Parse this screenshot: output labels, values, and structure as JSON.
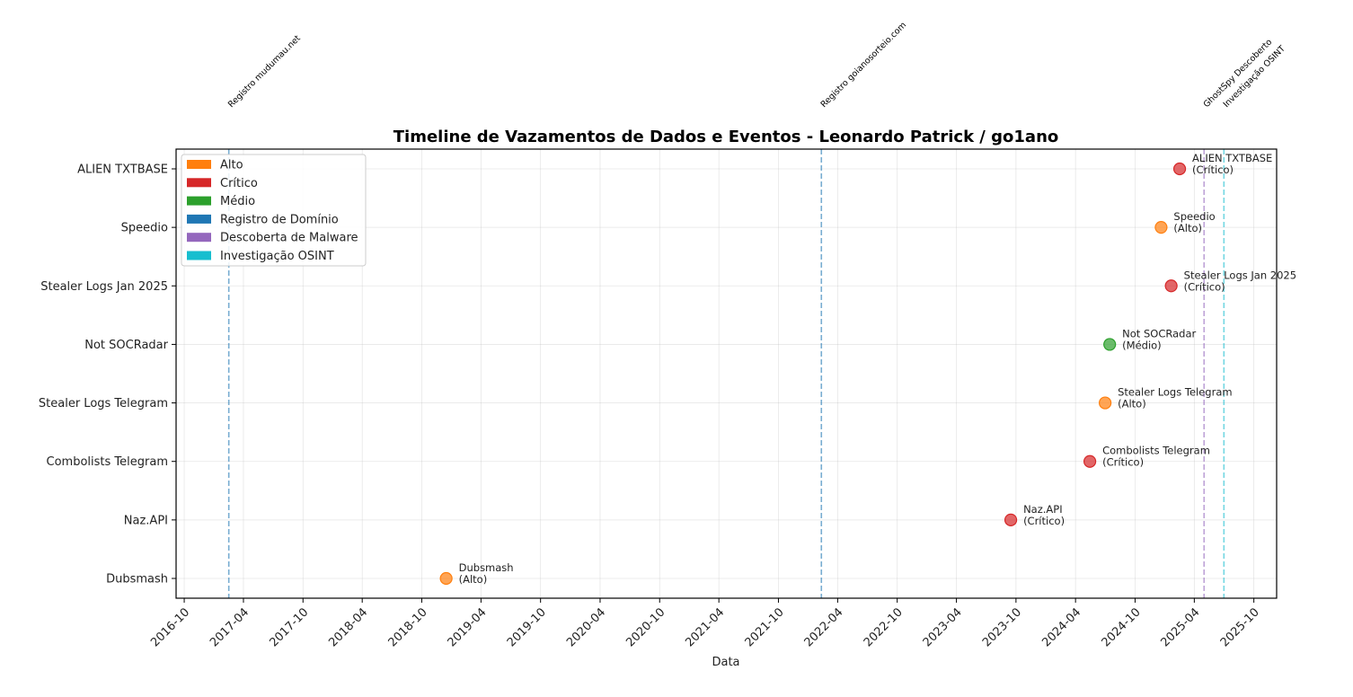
{
  "chart_data": {
    "type": "scatter",
    "title": "Timeline de Vazamentos de Dados e Eventos - Leonardo Patrick / go1ano",
    "xlabel": "Data",
    "ylabel": "",
    "x_axis_type": "date",
    "xlim": [
      "2016-09-06",
      "2025-12-10"
    ],
    "x_ticks": [
      "2016-10",
      "2017-04",
      "2017-10",
      "2018-04",
      "2018-10",
      "2019-04",
      "2019-10",
      "2020-04",
      "2020-10",
      "2021-04",
      "2021-10",
      "2022-04",
      "2022-10",
      "2023-04",
      "2023-10",
      "2024-04",
      "2024-10",
      "2025-04",
      "2025-10"
    ],
    "categories": [
      "Dubsmash",
      "Naz.API",
      "Combolists Telegram",
      "Stealer Logs Telegram",
      "Not SOCRadar",
      "Stealer Logs Jan 2025",
      "Speedio",
      "ALIEN TXTBASE"
    ],
    "grid": true,
    "legend_position": "top-left",
    "severity_colors": {
      "Alto": "#ff7f0e",
      "Crítico": "#d62728",
      "Médio": "#2ca02c"
    },
    "points": [
      {
        "category": "Dubsmash",
        "date": "2018-12-15",
        "severity": "Alto",
        "label": "Dubsmash",
        "sublabel": "(Alto)"
      },
      {
        "category": "Naz.API",
        "date": "2023-09-15",
        "severity": "Crítico",
        "label": "Naz.API",
        "sublabel": "(Crítico)"
      },
      {
        "category": "Combolists Telegram",
        "date": "2024-05-15",
        "severity": "Crítico",
        "label": "Combolists Telegram",
        "sublabel": "(Crítico)"
      },
      {
        "category": "Stealer Logs Telegram",
        "date": "2024-07-01",
        "severity": "Alto",
        "label": "Stealer Logs Telegram",
        "sublabel": "(Alto)"
      },
      {
        "category": "Not SOCRadar",
        "date": "2024-07-15",
        "severity": "Médio",
        "label": "Not SOCRadar",
        "sublabel": "(Médio)"
      },
      {
        "category": "Stealer Logs Jan 2025",
        "date": "2025-01-20",
        "severity": "Crítico",
        "label": "Stealer Logs Jan 2025",
        "sublabel": "(Crítico)"
      },
      {
        "category": "Speedio",
        "date": "2024-12-20",
        "severity": "Alto",
        "label": "Speedio",
        "sublabel": "(Alto)"
      },
      {
        "category": "ALIEN TXTBASE",
        "date": "2025-02-15",
        "severity": "Crítico",
        "label": "ALIEN TXTBASE",
        "sublabel": "(Crítico)"
      }
    ],
    "event_lines": [
      {
        "date": "2017-02-15",
        "label": "Registro mudumau.net",
        "type": "Registro de Domínio",
        "color": "#1f77b4"
      },
      {
        "date": "2022-02-10",
        "label": "Registro goianosorteio.com",
        "type": "Registro de Domínio",
        "color": "#1f77b4"
      },
      {
        "date": "2025-05-01",
        "label": "GhostSpy Descoberto",
        "type": "Descoberta de Malware",
        "color": "#9467bd"
      },
      {
        "date": "2025-07-01",
        "label": "Investigação OSINT",
        "type": "Investigação OSINT",
        "color": "#17becf"
      }
    ],
    "legend": [
      {
        "label": "Alto",
        "color": "#ff7f0e"
      },
      {
        "label": "Crítico",
        "color": "#d62728"
      },
      {
        "label": "Médio",
        "color": "#2ca02c"
      },
      {
        "label": "Registro de Domínio",
        "color": "#1f77b4"
      },
      {
        "label": "Descoberta de Malware",
        "color": "#9467bd"
      },
      {
        "label": "Investigação OSINT",
        "color": "#17becf"
      }
    ]
  }
}
